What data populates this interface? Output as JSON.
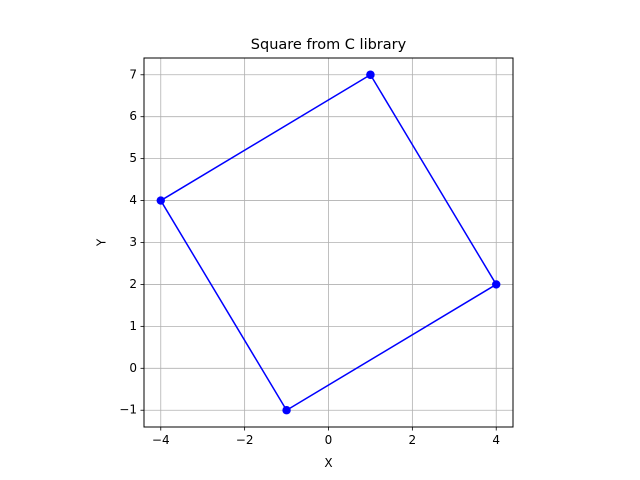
{
  "chart_data": {
    "type": "line",
    "title": "Square from C library",
    "xlabel": "X",
    "ylabel": "Y",
    "xlim": [
      -4.4,
      4.4
    ],
    "ylim": [
      -1.4,
      7.4
    ],
    "x_ticks": [
      -4,
      -2,
      0,
      2,
      4
    ],
    "x_tick_labels": [
      "−4",
      "−2",
      "0",
      "2",
      "4"
    ],
    "y_ticks": [
      -1,
      0,
      1,
      2,
      3,
      4,
      5,
      6,
      7
    ],
    "y_tick_labels": [
      "−1",
      "0",
      "1",
      "2",
      "3",
      "4",
      "5",
      "6",
      "7"
    ],
    "grid": true,
    "series": [
      {
        "color": "#0000ff",
        "marker": "circle",
        "x": [
          1,
          4,
          -1,
          -4,
          1
        ],
        "y": [
          7,
          2,
          -1,
          4,
          7
        ]
      }
    ]
  }
}
